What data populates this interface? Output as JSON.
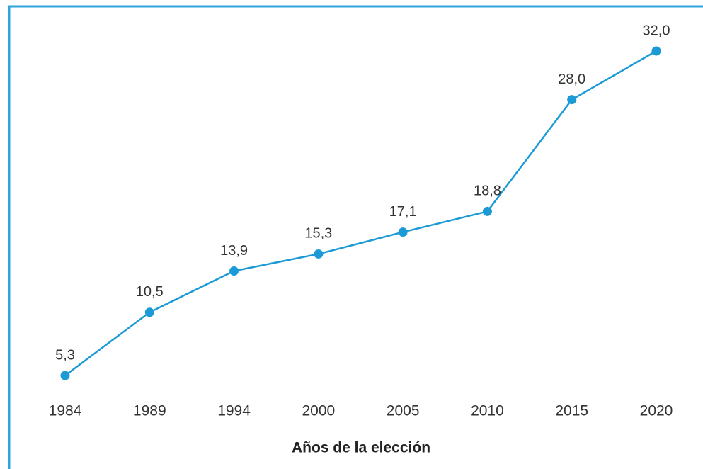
{
  "chart_data": {
    "type": "line",
    "x_label": "Años de la elección",
    "categories": [
      "1984",
      "1989",
      "1994",
      "2000",
      "2005",
      "2010",
      "2015",
      "2020"
    ],
    "series": [
      {
        "name": null,
        "color": "#1b9ad6",
        "values": [
          5.3,
          10.5,
          13.9,
          15.3,
          17.1,
          18.8,
          28.0,
          32.0
        ],
        "value_labels": [
          "5,3",
          "10,5",
          "13,9",
          "15,3",
          "17,1",
          "18,8",
          "28,0",
          "32,0"
        ]
      }
    ]
  }
}
